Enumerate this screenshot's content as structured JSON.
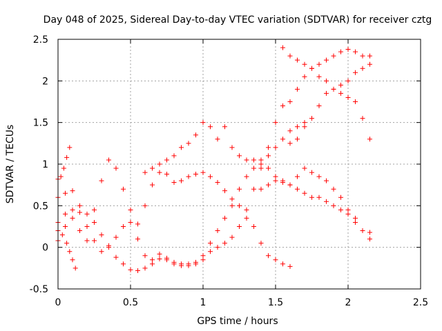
{
  "chart_data": {
    "type": "scatter",
    "title": "Day 048 of 2025, Sidereal Day-to-day VTEC variation (SDTVAR) for receiver cztg",
    "xlabel": "GPS time / hours",
    "ylabel": "SDTVAR / TECUs",
    "xlim": [
      0,
      2.5
    ],
    "ylim": [
      -0.5,
      2.5
    ],
    "xticks": [
      "0",
      "0.5",
      "1",
      "1.5",
      "2",
      "2.5"
    ],
    "yticks": [
      "-0.5",
      "0",
      "0.5",
      "1",
      "1.5",
      "2",
      "2.5"
    ],
    "grid": true,
    "marker": "+",
    "colors": {
      "points": "#ff0000",
      "grid": "#a0a0a0",
      "axis": "#000000"
    },
    "series": [
      {
        "x": [
          0.0,
          0.02,
          0.04,
          0.06,
          0.08
        ],
        "y": [
          0.82,
          0.85,
          0.95,
          1.08,
          1.2
        ]
      },
      {
        "x": [
          0.0,
          0.03,
          0.06,
          0.08,
          0.1,
          0.12
        ],
        "y": [
          0.2,
          0.15,
          0.05,
          -0.05,
          -0.15,
          -0.25
        ]
      },
      {
        "x": [
          0.0,
          0.05,
          0.1,
          0.15,
          0.2,
          0.25,
          0.3,
          0.35,
          0.4,
          0.45,
          0.5,
          0.55,
          0.6,
          0.65,
          0.7,
          0.75,
          0.8,
          0.85,
          0.9,
          0.95,
          1.0,
          1.05,
          1.1,
          1.15,
          1.2,
          1.25,
          1.3,
          1.35,
          1.4,
          1.45,
          1.5,
          1.55,
          1.6
        ],
        "y": [
          0.6,
          0.65,
          0.68,
          0.5,
          0.25,
          0.08,
          -0.05,
          0.02,
          0.12,
          0.25,
          0.3,
          0.28,
          0.5,
          0.75,
          0.9,
          0.88,
          0.78,
          0.8,
          0.85,
          0.88,
          0.9,
          0.85,
          0.78,
          0.68,
          0.58,
          0.5,
          0.35,
          0.25,
          0.05,
          -0.1,
          -0.15,
          -0.2,
          -0.23
        ]
      },
      {
        "x": [
          0.0,
          0.05,
          0.1,
          0.15,
          0.2,
          0.25,
          0.3,
          0.35,
          0.4,
          0.45,
          0.5,
          0.55,
          0.6,
          0.65,
          0.7,
          0.75,
          0.8,
          0.85,
          0.9,
          0.95,
          1.0,
          1.05,
          1.1,
          1.15,
          1.2,
          1.25,
          1.3,
          1.35,
          1.4,
          1.45,
          1.5,
          1.55,
          1.6,
          1.65,
          1.7,
          1.75,
          1.8,
          1.85,
          1.9,
          1.95,
          2.0,
          2.05,
          2.1,
          2.15
        ],
        "y": [
          0.3,
          0.4,
          0.45,
          0.42,
          0.4,
          0.3,
          0.15,
          0.0,
          -0.12,
          -0.2,
          -0.27,
          -0.28,
          -0.25,
          -0.2,
          -0.14,
          -0.13,
          -0.18,
          -0.2,
          -0.22,
          -0.2,
          -0.15,
          -0.05,
          0.0,
          0.05,
          0.12,
          0.25,
          0.45,
          0.7,
          0.95,
          1.2,
          1.5,
          1.7,
          1.75,
          1.9,
          2.05,
          2.15,
          2.2,
          2.25,
          2.3,
          2.35,
          2.38,
          2.35,
          2.3,
          2.3
        ]
      },
      {
        "x": [
          0.0,
          0.05,
          0.1,
          0.15,
          0.2,
          0.25,
          0.3,
          0.35,
          0.4,
          0.45,
          0.5,
          0.55,
          0.6,
          0.65,
          0.7,
          0.75,
          0.8,
          0.85,
          0.9,
          0.95,
          1.0,
          1.05,
          1.1,
          1.15,
          1.2,
          1.25,
          1.3,
          1.35,
          1.4,
          1.45,
          1.5,
          1.55,
          1.6,
          1.65,
          1.7
        ],
        "y": [
          0.08,
          0.25,
          0.35,
          0.2,
          0.08,
          0.45,
          0.8,
          1.05,
          0.95,
          0.7,
          0.45,
          0.1,
          -0.1,
          -0.15,
          -0.08,
          -0.15,
          -0.2,
          -0.22,
          -0.2,
          -0.18,
          -0.1,
          0.05,
          0.2,
          0.35,
          0.5,
          0.7,
          0.85,
          0.95,
          1.05,
          1.1,
          1.2,
          1.3,
          1.4,
          1.45,
          1.5
        ]
      },
      {
        "x": [
          0.6,
          0.65,
          0.7,
          0.75,
          0.8,
          0.85,
          0.9,
          0.95,
          1.0,
          1.05,
          1.1,
          1.15,
          1.2,
          1.25,
          1.3,
          1.35,
          1.4,
          1.45,
          1.5,
          1.55,
          1.6,
          1.65,
          1.7,
          1.75,
          1.8,
          1.85,
          1.9,
          1.95,
          2.0,
          2.05,
          2.1,
          2.15
        ],
        "y": [
          0.9,
          0.95,
          1.0,
          1.05,
          1.1,
          1.2,
          1.25,
          1.35,
          1.5,
          1.45,
          1.3,
          1.45,
          1.2,
          1.1,
          1.05,
          1.05,
          1.0,
          0.95,
          0.85,
          0.8,
          0.75,
          0.7,
          0.65,
          0.6,
          0.6,
          0.55,
          0.5,
          0.45,
          0.4,
          0.3,
          0.2,
          0.1
        ]
      },
      {
        "x": [
          1.55,
          1.6,
          1.65,
          1.7,
          1.75,
          1.8,
          1.85,
          1.9,
          1.95,
          2.0,
          2.05,
          2.1,
          2.15
        ],
        "y": [
          2.4,
          2.3,
          2.25,
          2.2,
          2.15,
          2.05,
          2.0,
          1.9,
          1.85,
          1.8,
          1.75,
          1.55,
          1.3
        ]
      },
      {
        "x": [
          1.4,
          1.45,
          1.5,
          1.55,
          1.6,
          1.65,
          1.7,
          1.75,
          1.8,
          1.85,
          1.9,
          1.95,
          2.0,
          2.05,
          2.1,
          2.15
        ],
        "y": [
          0.7,
          0.75,
          0.8,
          0.78,
          0.75,
          0.85,
          0.95,
          0.9,
          0.85,
          0.8,
          0.7,
          0.6,
          0.45,
          0.35,
          0.2,
          0.18
        ]
      },
      {
        "x": [
          1.6,
          1.65,
          1.7,
          1.75,
          1.8,
          1.85,
          1.9,
          1.95,
          2.0,
          2.05,
          2.1,
          2.15
        ],
        "y": [
          1.25,
          1.3,
          1.45,
          1.55,
          1.7,
          1.85,
          1.9,
          1.95,
          2.0,
          2.1,
          2.15,
          2.2
        ]
      }
    ]
  }
}
